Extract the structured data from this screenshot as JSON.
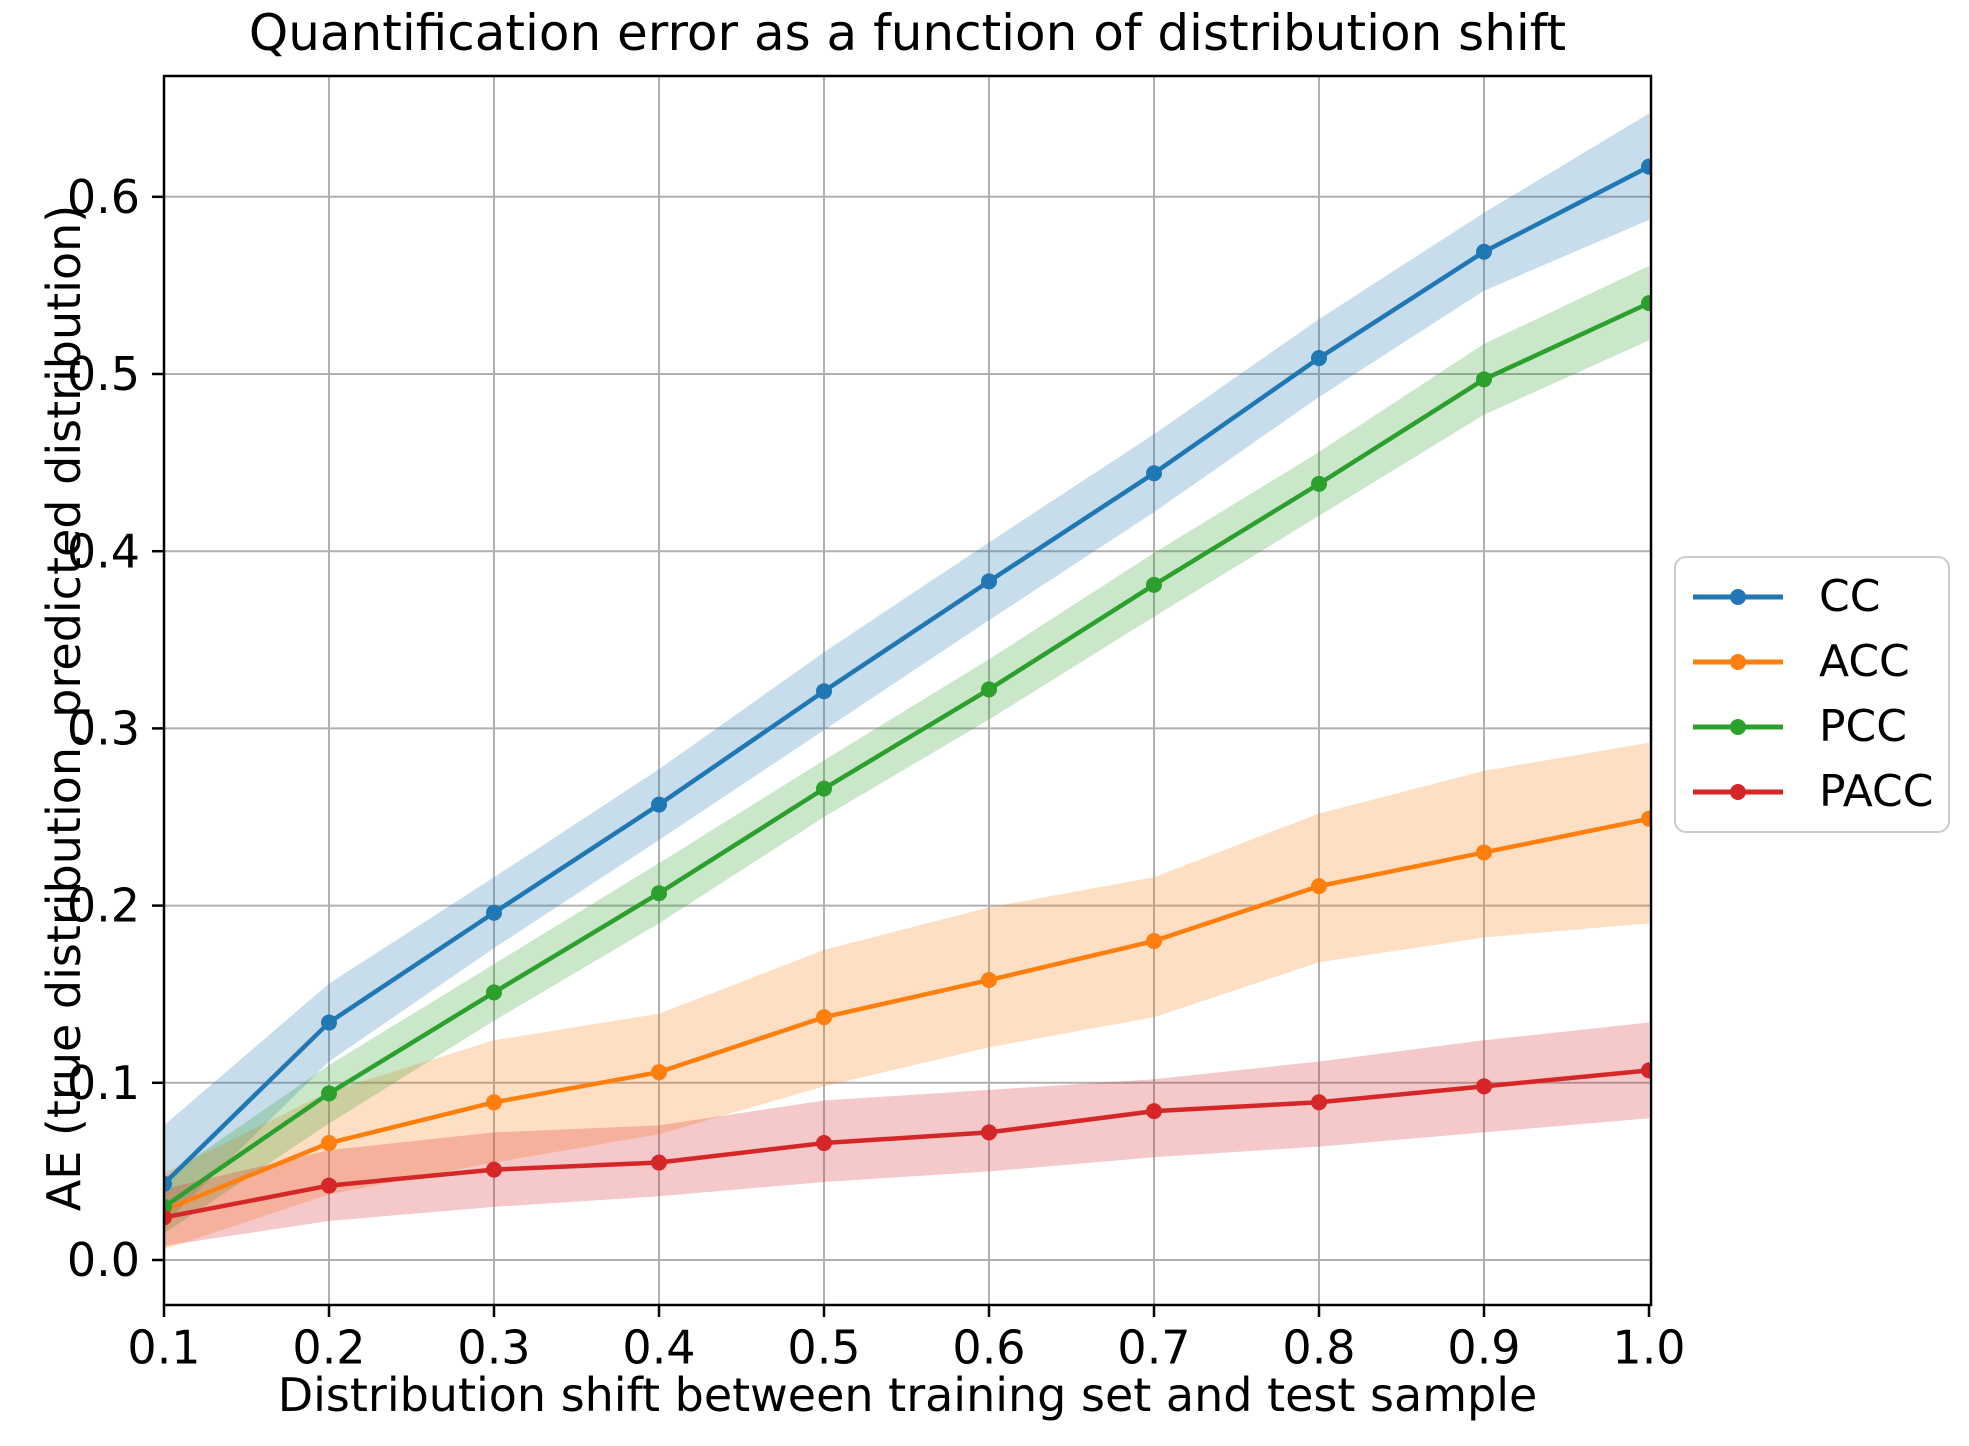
{
  "chart_data": {
    "type": "line",
    "title": "Quantification error as a function of distribution shift",
    "xlabel": "Distribution shift between training set and test sample",
    "ylabel": "AE (true distribution, predicted distribution)",
    "x": [
      0.1,
      0.2,
      0.3,
      0.4,
      0.5,
      0.6,
      0.7,
      0.8,
      0.9,
      1.0
    ],
    "xlim": [
      0.1,
      1.0
    ],
    "ylim": [
      -0.025,
      0.668
    ],
    "xticks": [
      "0.1",
      "0.2",
      "0.3",
      "0.4",
      "0.5",
      "0.6",
      "0.7",
      "0.8",
      "0.9",
      "1.0"
    ],
    "yticks": [
      "0.0",
      "0.1",
      "0.2",
      "0.3",
      "0.4",
      "0.5",
      "0.6"
    ],
    "grid": true,
    "grid_color": "#b0b0b0",
    "band_opacity": 0.25,
    "legend_position": "right of axes, vertically centered",
    "series": [
      {
        "name": "CC",
        "color": "#1f77b4",
        "values": [
          0.043,
          0.134,
          0.196,
          0.257,
          0.321,
          0.383,
          0.444,
          0.509,
          0.569,
          0.617
        ],
        "band_lo": [
          0.02,
          0.112,
          0.176,
          0.237,
          0.299,
          0.361,
          0.422,
          0.487,
          0.547,
          0.587
        ],
        "band_hi": [
          0.076,
          0.156,
          0.216,
          0.277,
          0.343,
          0.405,
          0.466,
          0.531,
          0.591,
          0.647
        ]
      },
      {
        "name": "ACC",
        "color": "#ff7f0e",
        "values": [
          0.028,
          0.066,
          0.089,
          0.106,
          0.137,
          0.158,
          0.18,
          0.211,
          0.23,
          0.249
        ],
        "band_lo": [
          0.006,
          0.037,
          0.055,
          0.071,
          0.098,
          0.12,
          0.137,
          0.168,
          0.182,
          0.19
        ],
        "band_hi": [
          0.049,
          0.095,
          0.124,
          0.139,
          0.175,
          0.199,
          0.216,
          0.252,
          0.276,
          0.292
        ]
      },
      {
        "name": "PCC",
        "color": "#2ca02c",
        "values": [
          0.03,
          0.094,
          0.151,
          0.207,
          0.266,
          0.322,
          0.381,
          0.438,
          0.497,
          0.54
        ],
        "band_lo": [
          0.015,
          0.077,
          0.135,
          0.19,
          0.25,
          0.305,
          0.363,
          0.42,
          0.477,
          0.519
        ],
        "band_hi": [
          0.046,
          0.11,
          0.167,
          0.224,
          0.282,
          0.339,
          0.399,
          0.456,
          0.517,
          0.561
        ]
      },
      {
        "name": "PACC",
        "color": "#d62728",
        "values": [
          0.024,
          0.042,
          0.051,
          0.055,
          0.066,
          0.072,
          0.084,
          0.089,
          0.098,
          0.107
        ],
        "band_lo": [
          0.008,
          0.022,
          0.03,
          0.036,
          0.044,
          0.05,
          0.058,
          0.064,
          0.072,
          0.08
        ],
        "band_hi": [
          0.04,
          0.062,
          0.072,
          0.076,
          0.09,
          0.096,
          0.102,
          0.112,
          0.124,
          0.134
        ]
      }
    ]
  }
}
